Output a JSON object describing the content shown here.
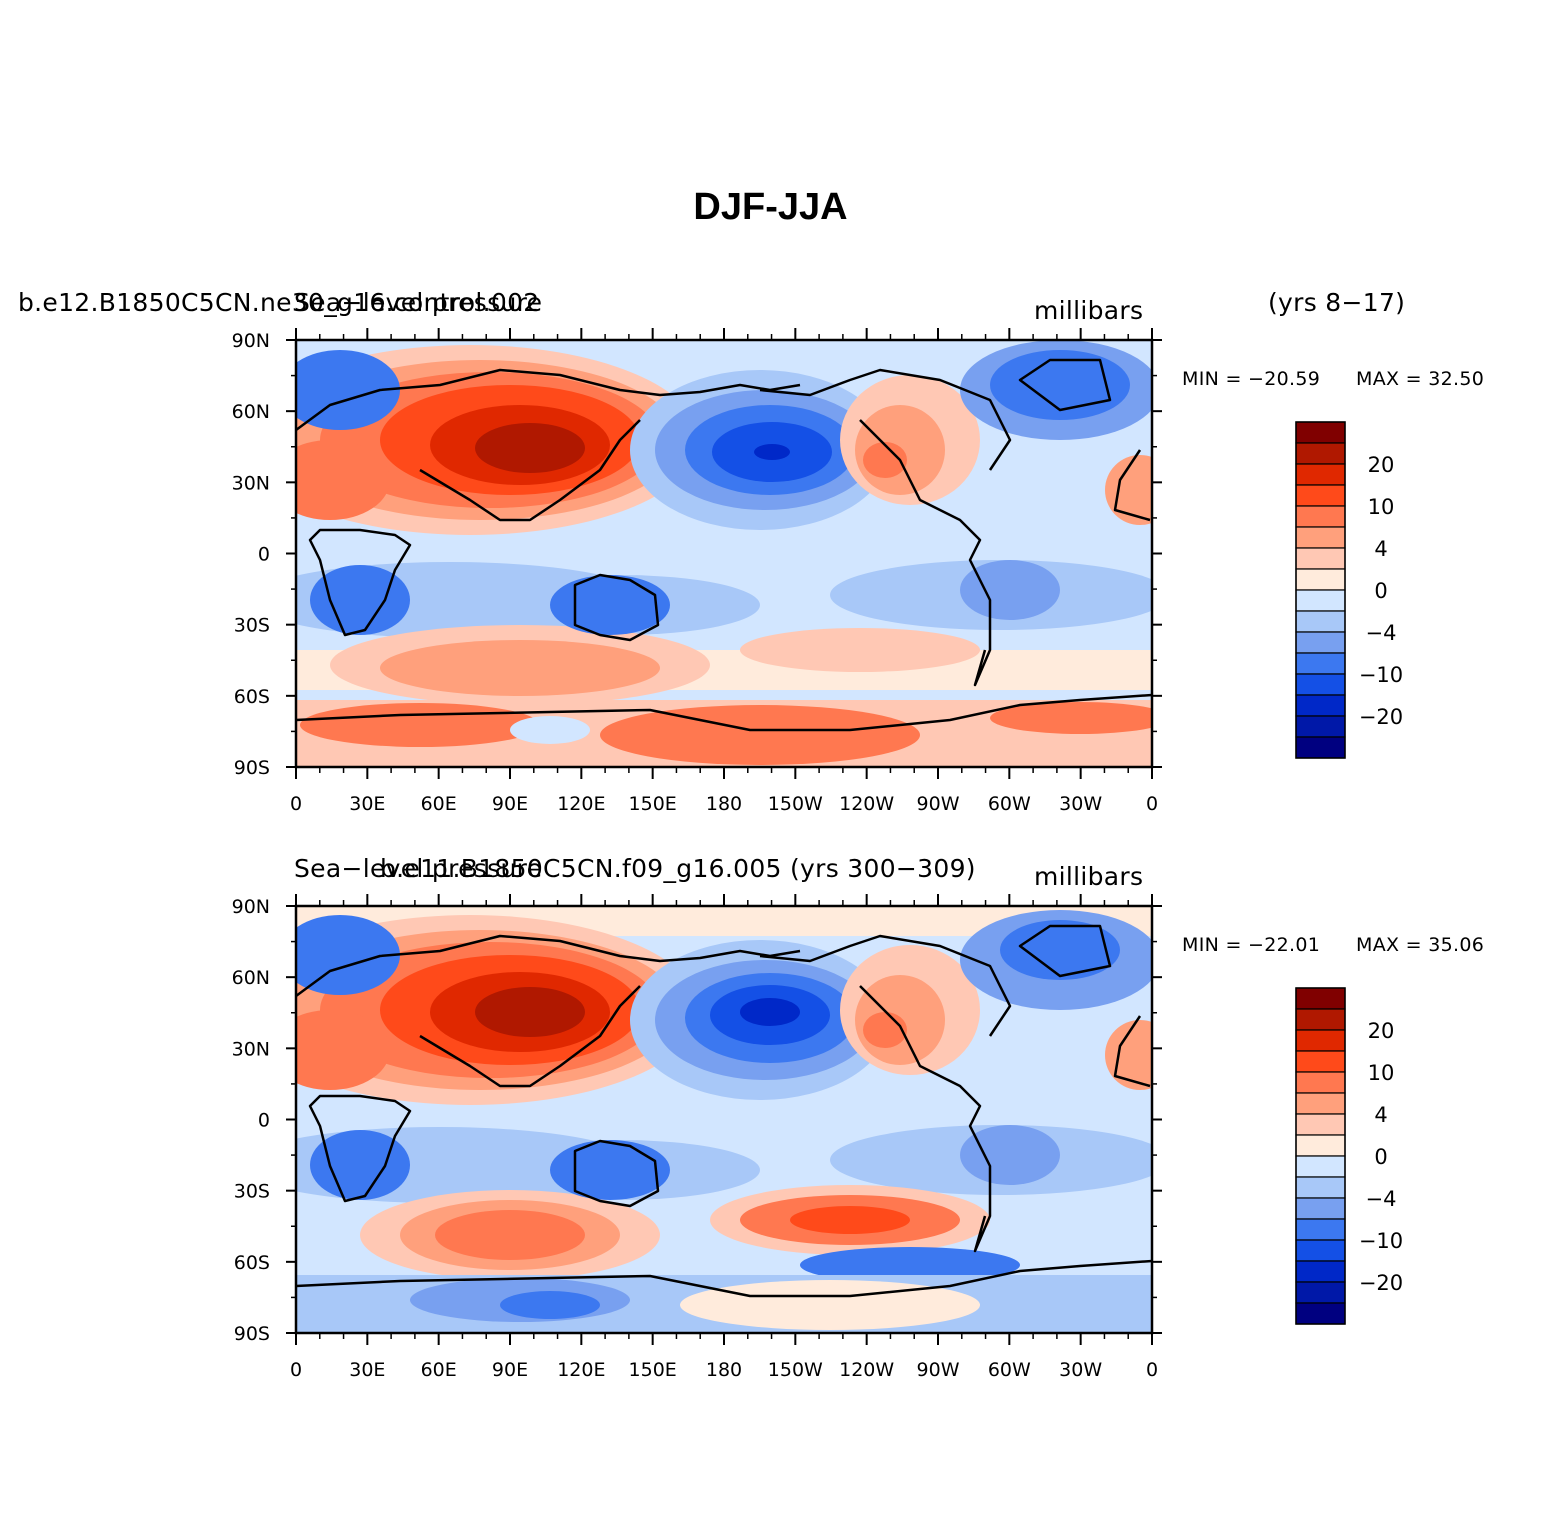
{
  "title": "DJF-JJA",
  "colorbar": {
    "colors": [
      "#000080",
      "#0018a8",
      "#0028c8",
      "#1450e6",
      "#3c78f0",
      "#78a0f0",
      "#a8c8f8",
      "#d2e6ff",
      "#ffebdc",
      "#ffc8b4",
      "#ffa07c",
      "#ff7850",
      "#ff4a1a",
      "#e02800",
      "#b01800",
      "#800000"
    ],
    "labels": [
      "20",
      "10",
      "4",
      "0",
      "−4",
      "−10",
      "−20"
    ]
  },
  "panels": [
    {
      "case_label": "b.e12.B1850C5CN.ne30_g16.control.002",
      "variable_label": "Sea−level pressure",
      "units": "millibars",
      "years": "(yrs 8−17)",
      "min_text": "MIN = −20.59",
      "max_text": "MAX =  32.50"
    },
    {
      "case_label": "b.e11.B1850C5CN.f09_g16.005 (yrs 300−309)",
      "variable_label": "Sea−level pressure",
      "units": "millibars",
      "years": "",
      "min_text": "MIN = −22.01",
      "max_text": "MAX =  35.06"
    }
  ],
  "map": {
    "projection": "cylindrical equidistant",
    "variable": "Sea−level pressure difference DJF minus JJA",
    "lat_labels": [
      "90N",
      "60N",
      "30N",
      "0",
      "30S",
      "60S",
      "90S"
    ],
    "lon_labels": [
      "0",
      "30E",
      "60E",
      "90E",
      "120E",
      "150E",
      "180",
      "150W",
      "120W",
      "90W",
      "60W",
      "30W",
      "0"
    ]
  }
}
